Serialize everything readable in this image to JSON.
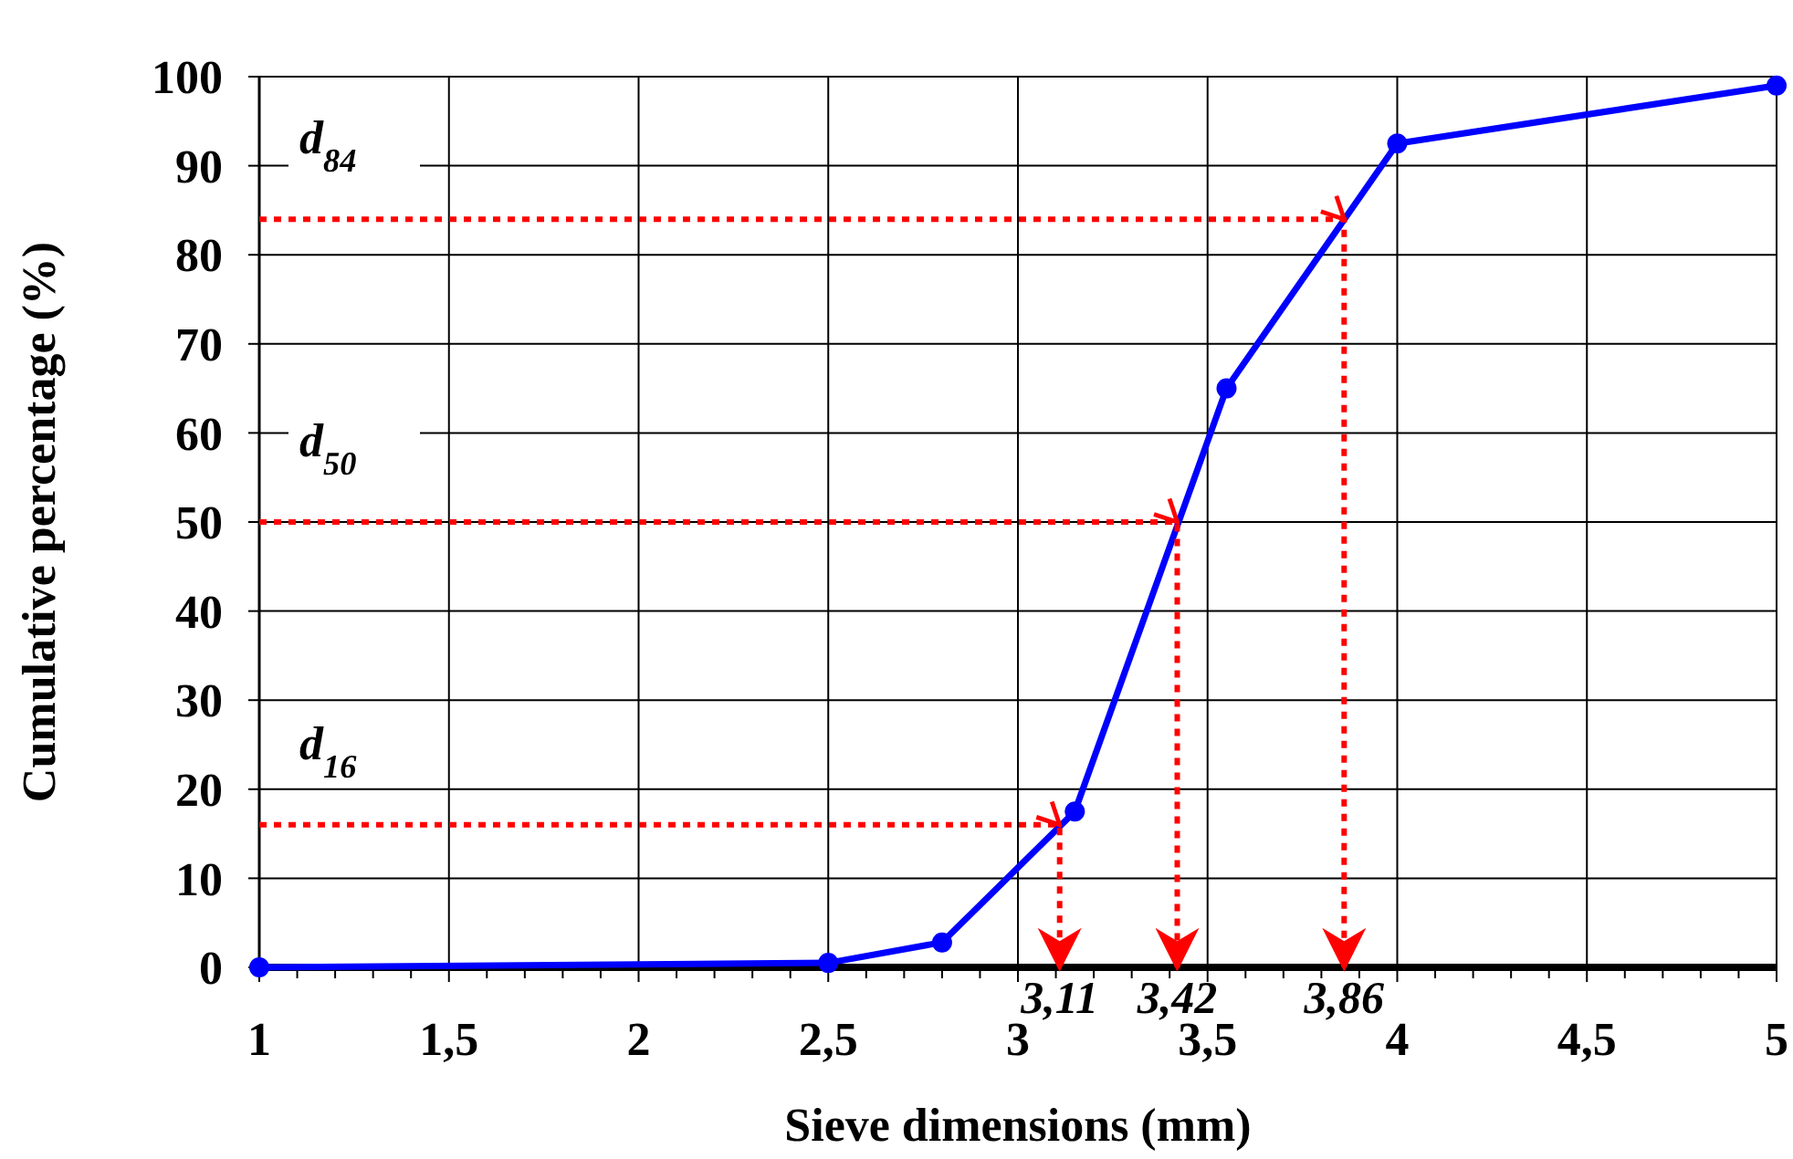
{
  "chart_data": {
    "type": "line",
    "xlabel": "Sieve dimensions (mm)",
    "ylabel": "Cumulative percentage (%)",
    "xlim": [
      1,
      5
    ],
    "ylim": [
      0,
      100
    ],
    "xticks": [
      {
        "value": 1,
        "label": "1"
      },
      {
        "value": 1.1,
        "label": null
      },
      {
        "value": 1.2,
        "label": null
      },
      {
        "value": 1.3,
        "label": null
      },
      {
        "value": 1.4,
        "label": null
      },
      {
        "value": 1.5,
        "label": "1,5"
      },
      {
        "value": 1.6,
        "label": null
      },
      {
        "value": 1.7,
        "label": null
      },
      {
        "value": 1.8,
        "label": null
      },
      {
        "value": 1.9,
        "label": null
      },
      {
        "value": 2,
        "label": "2"
      },
      {
        "value": 2.1,
        "label": null
      },
      {
        "value": 2.2,
        "label": null
      },
      {
        "value": 2.3,
        "label": null
      },
      {
        "value": 2.4,
        "label": null
      },
      {
        "value": 2.5,
        "label": "2,5"
      },
      {
        "value": 2.6,
        "label": null
      },
      {
        "value": 2.7,
        "label": null
      },
      {
        "value": 2.8,
        "label": null
      },
      {
        "value": 2.9,
        "label": null
      },
      {
        "value": 3,
        "label": "3"
      },
      {
        "value": 3.1,
        "label": null
      },
      {
        "value": 3.2,
        "label": null
      },
      {
        "value": 3.3,
        "label": null
      },
      {
        "value": 3.4,
        "label": null
      },
      {
        "value": 3.5,
        "label": "3,5"
      },
      {
        "value": 3.6,
        "label": null
      },
      {
        "value": 3.7,
        "label": null
      },
      {
        "value": 3.8,
        "label": null
      },
      {
        "value": 3.9,
        "label": null
      },
      {
        "value": 4,
        "label": "4"
      },
      {
        "value": 4.1,
        "label": null
      },
      {
        "value": 4.2,
        "label": null
      },
      {
        "value": 4.3,
        "label": null
      },
      {
        "value": 4.4,
        "label": null
      },
      {
        "value": 4.5,
        "label": "4,5"
      },
      {
        "value": 4.6,
        "label": null
      },
      {
        "value": 4.7,
        "label": null
      },
      {
        "value": 4.8,
        "label": null
      },
      {
        "value": 4.9,
        "label": null
      },
      {
        "value": 5,
        "label": "5"
      }
    ],
    "yticks": [
      0,
      10,
      20,
      30,
      40,
      50,
      60,
      70,
      80,
      90,
      100
    ],
    "grid": true,
    "series": [
      {
        "color": "#0000ff",
        "marker": "circle",
        "line_style": "solid",
        "x": [
          1,
          2.5,
          2.8,
          3.15,
          3.55,
          4,
          5
        ],
        "values": [
          0,
          0.5,
          2.8,
          17.5,
          65,
          92.5,
          99
        ]
      },
      {
        "color": "#ff0000",
        "marker": "none",
        "line_style": "dotted",
        "x": [
          1,
          3.86,
          3.86
        ],
        "values": [
          84,
          84,
          0
        ]
      },
      {
        "color": "#ff0000",
        "marker": "none",
        "line_style": "dotted",
        "x": [
          1,
          3.42,
          3.42
        ],
        "values": [
          50,
          50,
          0
        ]
      },
      {
        "color": "#ff0000",
        "marker": "none",
        "line_style": "dotted",
        "x": [
          1,
          3.11,
          3.11
        ],
        "values": [
          16,
          16,
          0
        ]
      }
    ],
    "annotations": [
      "d$_{84}$",
      "d$_{50}$",
      "d$_{16}$",
      {
        "text": "3,11",
        "x": 3.11,
        "y": 0
      },
      {
        "text": "3,42",
        "x": 3.42,
        "y": 0
      },
      {
        "text": "3,86",
        "x": 3.86,
        "y": 0
      }
    ]
  }
}
